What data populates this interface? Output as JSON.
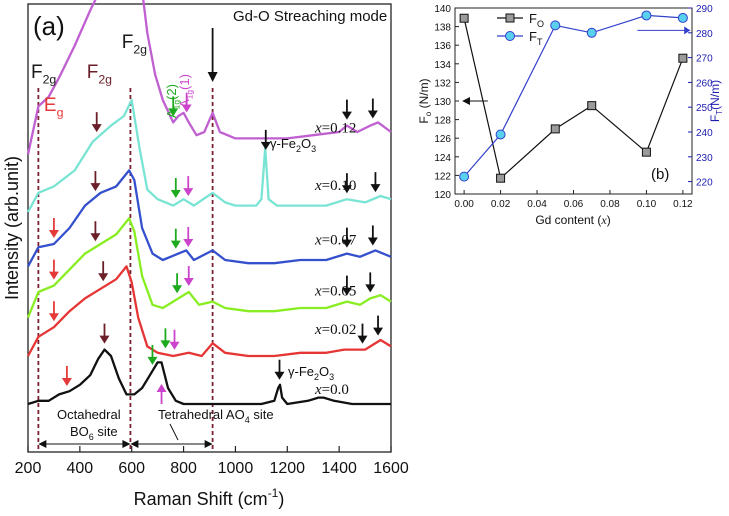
{
  "chart_data": [
    {
      "type": "line",
      "panel_label": "(a)",
      "xlabel": "Raman Shift (cm",
      "xlabel_sup": "-1",
      "xlabel_end": ")",
      "ylabel": "Intensity (arb.unit)",
      "xlim": [
        200,
        1600
      ],
      "x_ticks": [
        200,
        400,
        600,
        800,
        1000,
        1200,
        1400,
        1600
      ],
      "y_axis_ticks": "none",
      "title_annotation": "Gd-O Streaching mode",
      "mode_labels": [
        {
          "main": "F",
          "sub": "2g",
          "x": 250,
          "color": "#1a1a1a"
        },
        {
          "main": "E",
          "sub": "g",
          "x": 300,
          "color": "#e53a3a"
        },
        {
          "main": "F",
          "sub": "2g",
          "x": 465,
          "color": "#6b1f28"
        },
        {
          "main": "F",
          "sub": "2g",
          "x": 600,
          "color": "#1a1a1a"
        },
        {
          "main": "A",
          "sub": "1g",
          "suffix": "(2)",
          "x": 770,
          "color": "#1eaa1e"
        },
        {
          "main": "A",
          "sub": "1g",
          "suffix": "(1)",
          "x": 820,
          "color": "#cc44cc"
        }
      ],
      "reference_lines_x": [
        240,
        595,
        912
      ],
      "region_annotations": [
        {
          "line1": "Octahedral",
          "line2_main": "BO",
          "line2_sub": "6",
          "line2_rest": " site",
          "x_range": [
            240,
            595
          ]
        },
        {
          "line1": "Tetrahedral AO",
          "line1_sub": "4",
          "line1_rest": " site",
          "x_range": [
            595,
            912
          ]
        }
      ],
      "impurity_label": {
        "main": "γ-Fe",
        "sub1": "2",
        "mid": "O",
        "sub2": "3"
      },
      "series": [
        {
          "name": "x=0.12",
          "label_main": "x",
          "label_rest": "=0.12",
          "color": "#c060d0",
          "offset": 0.78,
          "points": [
            [
              200,
              0.0
            ],
            [
              240,
              0.15
            ],
            [
              280,
              0.18
            ],
            [
              320,
              0.24
            ],
            [
              380,
              0.34
            ],
            [
              440,
              0.45
            ],
            [
              500,
              0.55
            ],
            [
              560,
              0.62
            ],
            [
              600,
              0.68
            ],
            [
              630,
              0.58
            ],
            [
              660,
              0.38
            ],
            [
              690,
              0.25
            ],
            [
              720,
              0.17
            ],
            [
              760,
              0.1
            ],
            [
              780,
              0.12
            ],
            [
              800,
              0.13
            ],
            [
              820,
              0.1
            ],
            [
              850,
              0.06
            ],
            [
              880,
              0.07
            ],
            [
              912,
              0.13
            ],
            [
              940,
              0.07
            ],
            [
              1000,
              0.05
            ],
            [
              1100,
              0.05
            ],
            [
              1200,
              0.05
            ],
            [
              1300,
              0.06
            ],
            [
              1400,
              0.07
            ],
            [
              1430,
              0.09
            ],
            [
              1470,
              0.07
            ],
            [
              1520,
              0.09
            ],
            [
              1550,
              0.1
            ],
            [
              1600,
              0.07
            ]
          ]
        },
        {
          "name": "x=0.10",
          "label_main": "x",
          "label_rest": "=0.10",
          "color": "#7ae4d4",
          "offset": 0.6,
          "points": [
            [
              200,
              0.0
            ],
            [
              240,
              0.06
            ],
            [
              300,
              0.08
            ],
            [
              380,
              0.13
            ],
            [
              450,
              0.22
            ],
            [
              520,
              0.27
            ],
            [
              570,
              0.3
            ],
            [
              600,
              0.35
            ],
            [
              630,
              0.2
            ],
            [
              660,
              0.07
            ],
            [
              700,
              0.04
            ],
            [
              760,
              0.02
            ],
            [
              800,
              0.04
            ],
            [
              840,
              0.02
            ],
            [
              912,
              0.06
            ],
            [
              960,
              0.03
            ],
            [
              1000,
              0.02
            ],
            [
              1080,
              0.02
            ],
            [
              1100,
              0.04
            ],
            [
              1115,
              0.2
            ],
            [
              1128,
              0.04
            ],
            [
              1160,
              0.02
            ],
            [
              1250,
              0.02
            ],
            [
              1350,
              0.02
            ],
            [
              1430,
              0.04
            ],
            [
              1500,
              0.03
            ],
            [
              1560,
              0.05
            ],
            [
              1600,
              0.04
            ]
          ]
        },
        {
          "name": "x=0.07",
          "label_main": "x",
          "label_rest": "=0.07",
          "color": "#3550cc",
          "offset": 0.43,
          "points": [
            [
              200,
              0.0
            ],
            [
              240,
              0.06
            ],
            [
              300,
              0.07
            ],
            [
              360,
              0.12
            ],
            [
              420,
              0.19
            ],
            [
              480,
              0.23
            ],
            [
              540,
              0.25
            ],
            [
              590,
              0.3
            ],
            [
              610,
              0.27
            ],
            [
              640,
              0.12
            ],
            [
              680,
              0.04
            ],
            [
              720,
              0.02
            ],
            [
              780,
              0.04
            ],
            [
              810,
              0.05
            ],
            [
              840,
              0.02
            ],
            [
              912,
              0.05
            ],
            [
              960,
              0.02
            ],
            [
              1050,
              0.01
            ],
            [
              1150,
              0.01
            ],
            [
              1250,
              0.02
            ],
            [
              1350,
              0.02
            ],
            [
              1430,
              0.04
            ],
            [
              1480,
              0.03
            ],
            [
              1540,
              0.05
            ],
            [
              1600,
              0.03
            ]
          ]
        },
        {
          "name": "x=0.05",
          "label_main": "x",
          "label_rest": "=0.05",
          "color": "#88ee22",
          "offset": 0.27,
          "points": [
            [
              200,
              0.0
            ],
            [
              240,
              0.08
            ],
            [
              300,
              0.1
            ],
            [
              360,
              0.15
            ],
            [
              420,
              0.2
            ],
            [
              480,
              0.23
            ],
            [
              540,
              0.26
            ],
            [
              590,
              0.31
            ],
            [
              610,
              0.27
            ],
            [
              640,
              0.13
            ],
            [
              680,
              0.04
            ],
            [
              720,
              0.03
            ],
            [
              780,
              0.06
            ],
            [
              820,
              0.08
            ],
            [
              860,
              0.04
            ],
            [
              912,
              0.05
            ],
            [
              960,
              0.03
            ],
            [
              1050,
              0.02
            ],
            [
              1150,
              0.02
            ],
            [
              1250,
              0.03
            ],
            [
              1350,
              0.03
            ],
            [
              1430,
              0.05
            ],
            [
              1480,
              0.04
            ],
            [
              1520,
              0.06
            ],
            [
              1560,
              0.07
            ],
            [
              1600,
              0.05
            ]
          ]
        },
        {
          "name": "x=0.02",
          "label_main": "x",
          "label_rest": "=0.02",
          "color": "#e63535",
          "offset": 0.15,
          "points": [
            [
              200,
              0.0
            ],
            [
              240,
              0.06
            ],
            [
              300,
              0.09
            ],
            [
              360,
              0.14
            ],
            [
              420,
              0.18
            ],
            [
              480,
              0.21
            ],
            [
              540,
              0.24
            ],
            [
              580,
              0.28
            ],
            [
              600,
              0.23
            ],
            [
              625,
              0.12
            ],
            [
              660,
              0.03
            ],
            [
              700,
              0.01
            ],
            [
              760,
              0.0
            ],
            [
              820,
              0.01
            ],
            [
              870,
              0.0
            ],
            [
              912,
              0.04
            ],
            [
              960,
              0.01
            ],
            [
              1050,
              0.0
            ],
            [
              1150,
              0.0
            ],
            [
              1250,
              0.01
            ],
            [
              1350,
              0.01
            ],
            [
              1420,
              0.02
            ],
            [
              1500,
              0.02
            ],
            [
              1560,
              0.05
            ],
            [
              1600,
              0.03
            ]
          ]
        },
        {
          "name": "x=0.0",
          "label_main": "x",
          "label_rest": "=0.0",
          "color": "#111111",
          "offset": 0.0,
          "points": [
            [
              200,
              0.0
            ],
            [
              240,
              0.01
            ],
            [
              280,
              0.01
            ],
            [
              320,
              0.03
            ],
            [
              360,
              0.04
            ],
            [
              400,
              0.06
            ],
            [
              440,
              0.09
            ],
            [
              470,
              0.14
            ],
            [
              495,
              0.17
            ],
            [
              520,
              0.15
            ],
            [
              550,
              0.08
            ],
            [
              580,
              0.03
            ],
            [
              610,
              0.03
            ],
            [
              640,
              0.05
            ],
            [
              670,
              0.09
            ],
            [
              700,
              0.13
            ],
            [
              715,
              0.13
            ],
            [
              740,
              0.05
            ],
            [
              770,
              0.01
            ],
            [
              800,
              0.0
            ],
            [
              900,
              0.0
            ],
            [
              1000,
              0.0
            ],
            [
              1100,
              0.0
            ],
            [
              1150,
              0.01
            ],
            [
              1165,
              0.05
            ],
            [
              1172,
              0.06
            ],
            [
              1180,
              0.02
            ],
            [
              1200,
              0.0
            ],
            [
              1280,
              0.01
            ],
            [
              1320,
              0.02
            ],
            [
              1340,
              0.02
            ],
            [
              1380,
              0.01
            ],
            [
              1450,
              0.0
            ],
            [
              1550,
              0.0
            ],
            [
              1600,
              0.0
            ]
          ]
        }
      ]
    },
    {
      "type": "line",
      "panel_label": "(b)",
      "xlabel": "Gd content (",
      "xlabel_var": "x",
      "xlabel_end": ")",
      "x_ticks": [
        0.0,
        0.02,
        0.04,
        0.06,
        0.08,
        0.1,
        0.12
      ],
      "x_tick_labels": [
        "0.00",
        "0.02",
        "0.04",
        "0.06",
        "0.08",
        "0.10",
        "0.12"
      ],
      "xlim": [
        -0.005,
        0.125
      ],
      "y_left": {
        "label_main": "F",
        "label_sub": "o",
        "label_rest": " (N/m)",
        "lim": [
          120,
          140
        ],
        "ticks": [
          120,
          122,
          124,
          126,
          128,
          130,
          132,
          134,
          136,
          138,
          140
        ]
      },
      "y_right": {
        "label_main": "F",
        "label_sub": "T",
        "label_rest": "(N/m)",
        "lim": [
          215,
          290
        ],
        "ticks": [
          220,
          230,
          240,
          250,
          260,
          270,
          280,
          290
        ],
        "color": "#1c1cb0"
      },
      "series": [
        {
          "name": "F_O",
          "legend_main": "F",
          "legend_sub": "O",
          "axis": "left",
          "marker": "square",
          "color": "#111111",
          "marker_fill": "#9a9a9a",
          "x": [
            0.0,
            0.02,
            0.05,
            0.07,
            0.1,
            0.12
          ],
          "y": [
            138.9,
            121.7,
            127.0,
            129.5,
            124.5,
            134.6
          ]
        },
        {
          "name": "F_T",
          "legend_main": "F",
          "legend_sub": "T",
          "axis": "right",
          "marker": "circle",
          "color": "#3340cc",
          "marker_fill": "#58d0ee",
          "x": [
            0.0,
            0.02,
            0.05,
            0.07,
            0.1,
            0.12
          ],
          "y": [
            222,
            239,
            283,
            280,
            287,
            286
          ]
        }
      ]
    }
  ]
}
